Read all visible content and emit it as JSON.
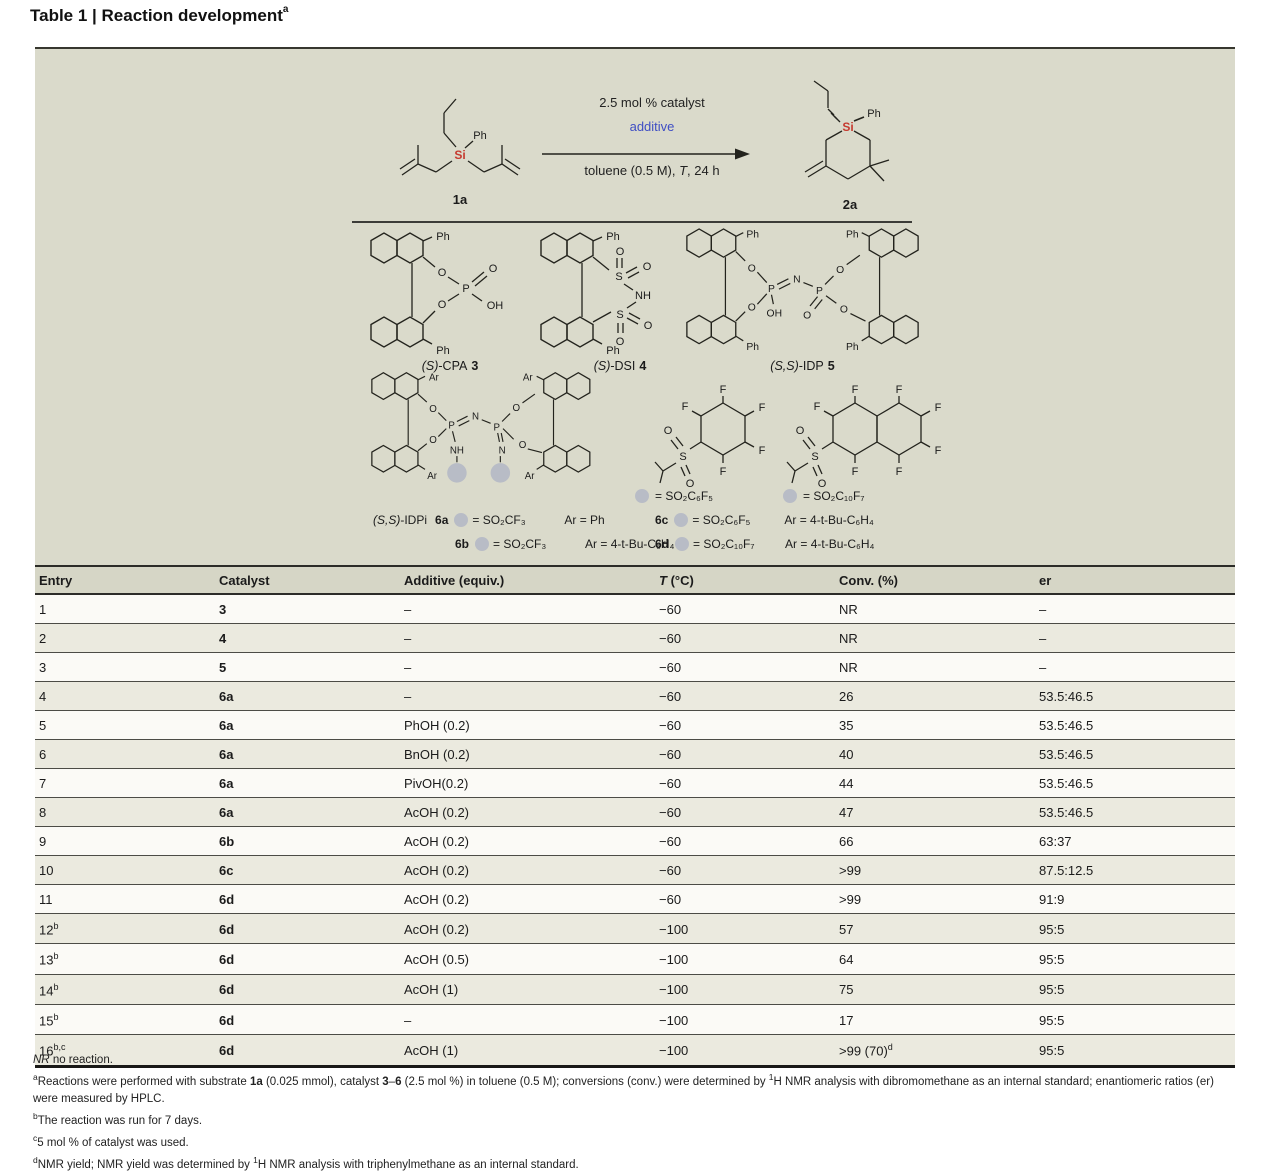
{
  "title": {
    "main": "Table 1 | Reaction development",
    "sup": "a"
  },
  "scheme": {
    "cond1": "2.5 mol % catalyst",
    "cond2": "additive",
    "cond3_pre": "toluene (0.5 M), ",
    "cond3_t": "T",
    "cond3_post": ", 24 h",
    "substrate_label": "1a",
    "product_label": "2a"
  },
  "atoms": {
    "si": "Si",
    "ph": "Ph",
    "o": "O",
    "oh": "OH",
    "p": "P",
    "s": "S",
    "n": "N",
    "nh": "NH",
    "f": "F",
    "ar": "Ar"
  },
  "colors": {
    "accent_blue": "#3f4ec4",
    "si_red": "#c63a2f",
    "circle_gray": "#b8bcc6",
    "panel_bg": "#dadacb",
    "stripe_bg": "#ebeadf"
  },
  "catalysts": {
    "c3": {
      "stereo": "(S)",
      "name": "-CPA",
      "num": "3"
    },
    "c4": {
      "stereo": "(S)",
      "name": "-DSI",
      "num": "4"
    },
    "c5": {
      "stereo": "(S,S)",
      "name": "-IDP",
      "num": "5"
    },
    "idpi": {
      "stereo": "(S,S)",
      "name": "-IDPi"
    },
    "variants": [
      {
        "num": "6a",
        "r": "= SO₂CF₃",
        "ar": "Ar = Ph"
      },
      {
        "num": "6b",
        "r": "= SO₂CF₃",
        "ar": "Ar = 4-t-Bu-C₆H₄"
      },
      {
        "num": "6c",
        "r": "= SO₂C₆F₅",
        "ar": "Ar = 4-t-Bu-C₆H₄"
      },
      {
        "num": "6d",
        "r": "= SO₂C₁₀F₇",
        "ar": "Ar = 4-t-Bu-C₆H₄"
      }
    ],
    "frag1": "= SO₂C₆F₅",
    "frag2": "= SO₂C₁₀F₇"
  },
  "table": {
    "headers": [
      {
        "label": "Entry"
      },
      {
        "label": "Catalyst"
      },
      {
        "label": "Additive (equiv.)"
      },
      {
        "pre_italic": "T",
        "label": " (°C)"
      },
      {
        "label": "Conv. (%)"
      },
      {
        "label": "er"
      }
    ],
    "rows": [
      {
        "entry": "1",
        "entry_sup": "",
        "catalyst": "3",
        "additive": "–",
        "temp": "−60",
        "conv": "NR",
        "conv_sup": "",
        "er": "–"
      },
      {
        "entry": "2",
        "entry_sup": "",
        "catalyst": "4",
        "additive": "–",
        "temp": "−60",
        "conv": "NR",
        "conv_sup": "",
        "er": "–"
      },
      {
        "entry": "3",
        "entry_sup": "",
        "catalyst": "5",
        "additive": "–",
        "temp": "−60",
        "conv": "NR",
        "conv_sup": "",
        "er": "–"
      },
      {
        "entry": "4",
        "entry_sup": "",
        "catalyst": "6a",
        "additive": "–",
        "temp": "−60",
        "conv": "26",
        "conv_sup": "",
        "er": "53.5:46.5"
      },
      {
        "entry": "5",
        "entry_sup": "",
        "catalyst": "6a",
        "additive": "PhOH (0.2)",
        "temp": "−60",
        "conv": "35",
        "conv_sup": "",
        "er": "53.5:46.5"
      },
      {
        "entry": "6",
        "entry_sup": "",
        "catalyst": "6a",
        "additive": "BnOH (0.2)",
        "temp": "−60",
        "conv": "40",
        "conv_sup": "",
        "er": "53.5:46.5"
      },
      {
        "entry": "7",
        "entry_sup": "",
        "catalyst": "6a",
        "additive": "PivOH(0.2)",
        "temp": "−60",
        "conv": "44",
        "conv_sup": "",
        "er": "53.5:46.5"
      },
      {
        "entry": "8",
        "entry_sup": "",
        "catalyst": "6a",
        "additive": "AcOH (0.2)",
        "temp": "−60",
        "conv": "47",
        "conv_sup": "",
        "er": "53.5:46.5"
      },
      {
        "entry": "9",
        "entry_sup": "",
        "catalyst": "6b",
        "additive": "AcOH (0.2)",
        "temp": "−60",
        "conv": "66",
        "conv_sup": "",
        "er": "63:37"
      },
      {
        "entry": "10",
        "entry_sup": "",
        "catalyst": "6c",
        "additive": "AcOH (0.2)",
        "temp": "−60",
        "conv": ">99",
        "conv_sup": "",
        "er": "87.5:12.5"
      },
      {
        "entry": "11",
        "entry_sup": "",
        "catalyst": "6d",
        "additive": "AcOH (0.2)",
        "temp": "−60",
        "conv": ">99",
        "conv_sup": "",
        "er": "91:9"
      },
      {
        "entry": "12",
        "entry_sup": "b",
        "catalyst": "6d",
        "additive": "AcOH (0.2)",
        "temp": "−100",
        "conv": "57",
        "conv_sup": "",
        "er": "95:5"
      },
      {
        "entry": "13",
        "entry_sup": "b",
        "catalyst": "6d",
        "additive": "AcOH (0.5)",
        "temp": "−100",
        "conv": "64",
        "conv_sup": "",
        "er": "95:5"
      },
      {
        "entry": "14",
        "entry_sup": "b",
        "catalyst": "6d",
        "additive": "AcOH (1)",
        "temp": "−100",
        "conv": "75",
        "conv_sup": "",
        "er": "95:5"
      },
      {
        "entry": "15",
        "entry_sup": "b",
        "catalyst": "6d",
        "additive": "–",
        "temp": "−100",
        "conv": "17",
        "conv_sup": "",
        "er": "95:5"
      },
      {
        "entry": "16",
        "entry_sup": "b,c",
        "catalyst": "6d",
        "additive": "AcOH (1)",
        "temp": "−100",
        "conv": ">99 (70)",
        "conv_sup": "d",
        "er": "95:5"
      }
    ]
  },
  "footnotes": [
    {
      "segments": [
        {
          "t": "NR",
          "s": "i"
        },
        {
          "t": " no reaction.",
          "s": ""
        }
      ]
    },
    {
      "segments": [
        {
          "t": "a",
          "s": "sup"
        },
        {
          "t": "Reactions were performed with substrate ",
          "s": ""
        },
        {
          "t": "1a",
          "s": "b"
        },
        {
          "t": " (0.025 mmol), catalyst ",
          "s": ""
        },
        {
          "t": "3",
          "s": "b"
        },
        {
          "t": "–",
          "s": ""
        },
        {
          "t": "6",
          "s": "b"
        },
        {
          "t": " (2.5 mol %) in toluene (0.5 M); conversions (conv.) were determined by ",
          "s": ""
        },
        {
          "t": "1",
          "s": "sup"
        },
        {
          "t": "H NMR analysis with dibromomethane as an internal standard; enantiomeric ratios (er) were measured by HPLC.",
          "s": ""
        }
      ]
    },
    {
      "segments": [
        {
          "t": "b",
          "s": "sup"
        },
        {
          "t": "The reaction was run for 7 days.",
          "s": ""
        }
      ]
    },
    {
      "segments": [
        {
          "t": "c",
          "s": "sup"
        },
        {
          "t": "5 mol % of catalyst was used.",
          "s": ""
        }
      ]
    },
    {
      "segments": [
        {
          "t": "d",
          "s": "sup"
        },
        {
          "t": "NMR yield; NMR yield was determined by ",
          "s": ""
        },
        {
          "t": "1",
          "s": "sup"
        },
        {
          "t": "H NMR analysis with triphenylmethane as an internal standard.",
          "s": ""
        }
      ]
    }
  ]
}
